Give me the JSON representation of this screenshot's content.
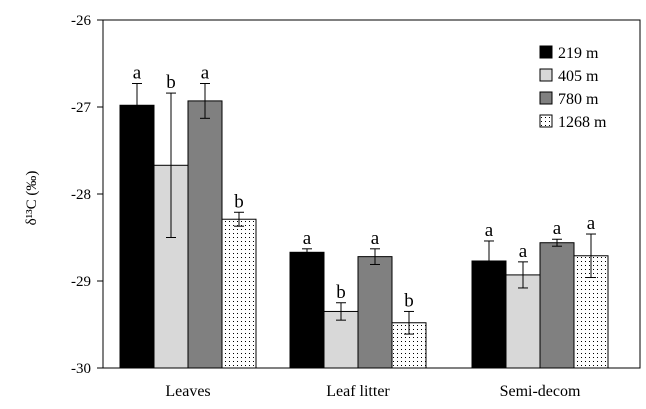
{
  "chart_data": {
    "type": "bar",
    "title": "",
    "xlabel": "",
    "ylabel": "δ¹³C (‰)",
    "ylim": [
      -30,
      -26
    ],
    "yticks": [
      -26,
      -27,
      -28,
      -29,
      -30
    ],
    "grid": false,
    "legend_position": "top-right",
    "categories": [
      "Leaves",
      "Leaf litter",
      "Semi-decom"
    ],
    "series": [
      {
        "name": "219 m",
        "values": [
          -26.98,
          -28.67,
          -28.77
        ],
        "errors": [
          0.25,
          0.04,
          0.23
        ],
        "letters": [
          "a",
          "a",
          "a"
        ],
        "fill": "#000000",
        "pattern": "solid"
      },
      {
        "name": "405 m",
        "values": [
          -27.67,
          -29.35,
          -28.93
        ],
        "errors": [
          0.83,
          0.1,
          0.15
        ],
        "letters": [
          "b",
          "b",
          "a"
        ],
        "fill": "#d8d8d8",
        "pattern": "solid"
      },
      {
        "name": "780 m",
        "values": [
          -26.93,
          -28.72,
          -28.56
        ],
        "errors": [
          0.2,
          0.09,
          0.04
        ],
        "letters": [
          "a",
          "a",
          "a"
        ],
        "fill": "#808080",
        "pattern": "solid"
      },
      {
        "name": "1268 m",
        "values": [
          -28.29,
          -29.48,
          -28.71
        ],
        "errors": [
          0.08,
          0.13,
          0.25
        ],
        "letters": [
          "b",
          "b",
          "a"
        ],
        "fill": "#ffffff",
        "pattern": "dots"
      }
    ]
  }
}
